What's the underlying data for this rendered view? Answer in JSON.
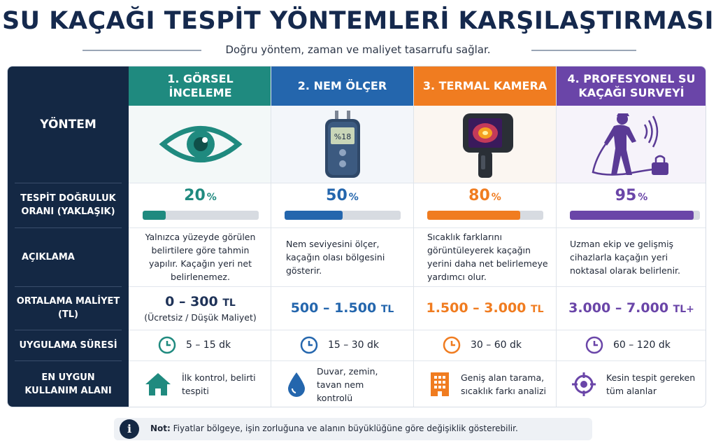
{
  "title": "SU KAÇAĞI TESPİT YÖNTEMLERİ KARŞILAŞTIRMASI",
  "subtitle": "Doğru yöntem, zaman ve maliyet tasarrufu sağlar.",
  "row_labels": {
    "method": "YÖNTEM",
    "accuracy": "TESPİT DOĞRULUK ORANI (YAKLAŞIK)",
    "description": "AÇIKLAMA",
    "cost": "ORTALAMA MALİYET (TL)",
    "duration": "UYGULAMA SÜRESİ",
    "usage": "EN UYGUN KULLANIM ALANI"
  },
  "methods": [
    {
      "title": "1. GÖRSEL İNCELEME",
      "color": "#1f8a7f",
      "icon": "eye-icon",
      "accuracy": 20,
      "accuracy_value": "20",
      "accuracy_unit": "%",
      "description": "Yalnızca yüzeyde görülen belirtilere göre tahmin yapılır. Kaçağın yeri net belirlenemez.",
      "cost_value": "0 – 300",
      "cost_unit": "TL",
      "cost_note": "(Ücretsiz / Düşük Maliyet)",
      "duration": "5 – 15 dk",
      "usage_icon": "home-icon",
      "usage": "İlk kontrol, belirti tespiti"
    },
    {
      "title": "2. NEM ÖLÇER",
      "color": "#2466ad",
      "icon": "moisture-meter-icon",
      "device_reading": "%18",
      "accuracy": 50,
      "accuracy_value": "50",
      "accuracy_unit": "%",
      "description": "Nem seviyesini ölçer, kaçağın olası bölgesini gösterir.",
      "cost_value": "500 – 1.500",
      "cost_unit": "TL",
      "duration": "15 – 30 dk",
      "usage_icon": "water-drop-icon",
      "usage": "Duvar, zemin, tavan nem kontrolü"
    },
    {
      "title": "3. TERMAL KAMERA",
      "color": "#f07c20",
      "icon": "thermal-camera-icon",
      "accuracy": 80,
      "accuracy_value": "80",
      "accuracy_unit": "%",
      "description": "Sıcaklık farklarını görüntüleyerek kaçağın yerini daha net belirlemeye yardımcı olur.",
      "cost_value": "1.500 – 3.000",
      "cost_unit": "TL",
      "duration": "30 – 60 dk",
      "usage_icon": "building-icon",
      "usage": "Geniş alan tarama, sıcaklık farkı analizi"
    },
    {
      "title": "4. PROFESYONEL SU KAÇAĞI SURVEYİ",
      "color": "#6a45a8",
      "icon": "professional-detector-icon",
      "accuracy": 95,
      "accuracy_value": "95",
      "accuracy_unit": "%",
      "description": "Uzman ekip ve gelişmiş cihazlarla kaçağın yeri noktasal olarak belirlenir.",
      "cost_value": "3.000 – 7.000",
      "cost_unit": "TL+",
      "duration": "60 – 120 dk",
      "usage_icon": "target-icon",
      "usage": "Kesin tespit gereken tüm alanlar"
    }
  ],
  "note": {
    "icon": "info-icon",
    "label": "Not:",
    "text": "Fiyatlar bölgeye, işin zorluğuna ve alanın büyüklüğüne göre değişiklik gösterebilir."
  }
}
